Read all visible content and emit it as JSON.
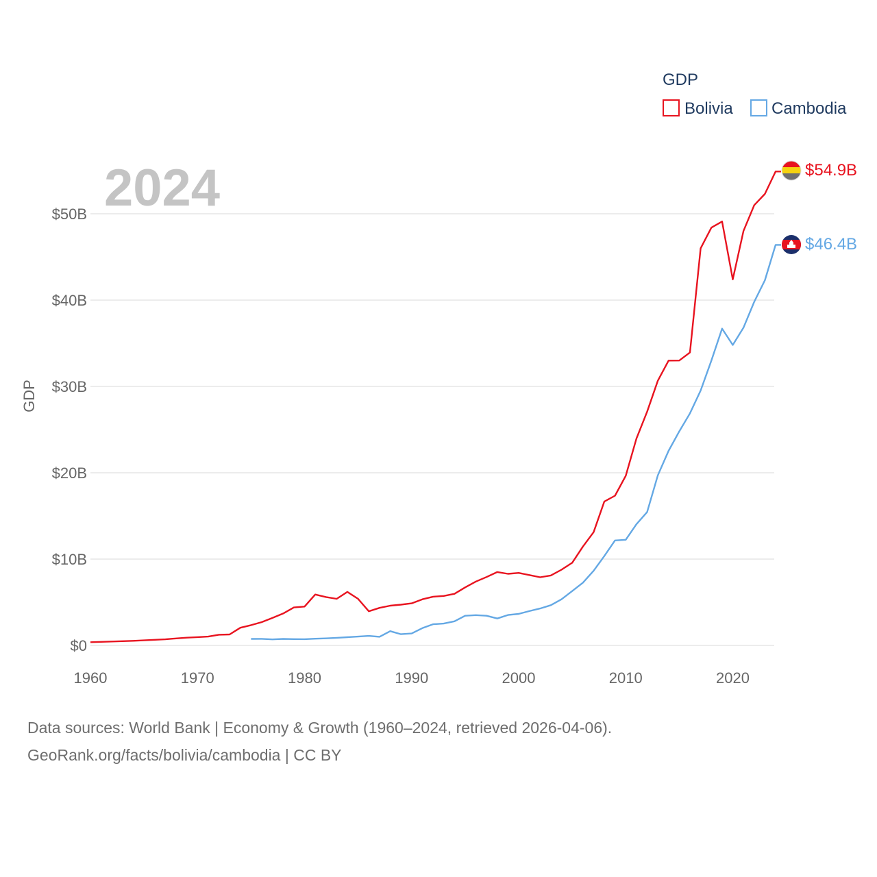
{
  "chart_data": {
    "type": "line",
    "title": "GDP",
    "ylabel": "GDP",
    "xlabel": "",
    "year_label": "2024",
    "xlim": [
      1960,
      2024
    ],
    "ylim": [
      0,
      55000000000
    ],
    "x_ticks": [
      1960,
      1970,
      1980,
      1990,
      2000,
      2010,
      2020
    ],
    "x_tick_labels": [
      "1960",
      "1970",
      "1980",
      "1990",
      "2000",
      "2010",
      "2020"
    ],
    "y_ticks": [
      0,
      10000000000,
      20000000000,
      30000000000,
      40000000000,
      50000000000
    ],
    "y_tick_labels": [
      "$0",
      "$10B",
      "$20B",
      "$30B",
      "$40B",
      "$50B"
    ],
    "grid": true,
    "legend": {
      "title": "GDP",
      "placement": "top-right",
      "entries": [
        {
          "name": "Bolivia",
          "color": "#e8131f"
        },
        {
          "name": "Cambodia",
          "color": "#64a8e4"
        }
      ]
    },
    "series": [
      {
        "name": "Bolivia",
        "color": "#e8131f",
        "end_label": "$54.9B",
        "flag_icon": "bolivia-flag-icon",
        "x": [
          1960,
          1961,
          1962,
          1963,
          1964,
          1965,
          1966,
          1967,
          1968,
          1969,
          1970,
          1971,
          1972,
          1973,
          1974,
          1975,
          1976,
          1977,
          1978,
          1979,
          1980,
          1981,
          1982,
          1983,
          1984,
          1985,
          1986,
          1987,
          1988,
          1989,
          1990,
          1991,
          1992,
          1993,
          1994,
          1995,
          1996,
          1997,
          1998,
          1999,
          2000,
          2001,
          2002,
          2003,
          2004,
          2005,
          2006,
          2007,
          2008,
          2009,
          2010,
          2011,
          2012,
          2013,
          2014,
          2015,
          2016,
          2017,
          2018,
          2019,
          2020,
          2021,
          2022,
          2023,
          2024
        ],
        "values": [
          370000000.0,
          410000000.0,
          450000000.0,
          490000000.0,
          530000000.0,
          590000000.0,
          650000000.0,
          710000000.0,
          810000000.0,
          900000000.0,
          960000000.0,
          1020000000.0,
          1240000000.0,
          1270000000.0,
          2050000000.0,
          2350000000.0,
          2700000000.0,
          3180000000.0,
          3700000000.0,
          4400000000.0,
          4500000000.0,
          5900000000.0,
          5600000000.0,
          5400000000.0,
          6200000000.0,
          5400000000.0,
          3950000000.0,
          4350000000.0,
          4600000000.0,
          4720000000.0,
          4870000000.0,
          5340000000.0,
          5640000000.0,
          5730000000.0,
          5980000000.0,
          6720000000.0,
          7400000000.0,
          7920000000.0,
          8500000000.0,
          8290000000.0,
          8400000000.0,
          8150000000.0,
          7900000000.0,
          8100000000.0,
          8770000000.0,
          9570000000.0,
          11450000000.0,
          13120000000.0,
          16670000000.0,
          17340000000.0,
          19650000000.0,
          23960000000.0,
          27080000000.0,
          30660000000.0,
          32990000000.0,
          33000000000.0,
          33940000000.0,
          46000000000.0,
          48400000000.0,
          49100000000.0,
          42400000000.0,
          48000000000.0,
          51000000000.0,
          52300000000.0,
          54900000000.0
        ]
      },
      {
        "name": "Cambodia",
        "color": "#64a8e4",
        "end_label": "$46.4B",
        "flag_icon": "cambodia-flag-icon",
        "x": [
          1975,
          1976,
          1977,
          1978,
          1979,
          1980,
          1981,
          1982,
          1983,
          1984,
          1985,
          1986,
          1987,
          1988,
          1989,
          1990,
          1991,
          1992,
          1993,
          1994,
          1995,
          1996,
          1997,
          1998,
          1999,
          2000,
          2001,
          2002,
          2003,
          2004,
          2005,
          2006,
          2007,
          2008,
          2009,
          2010,
          2011,
          2012,
          2013,
          2014,
          2015,
          2016,
          2017,
          2018,
          2019,
          2020,
          2021,
          2022,
          2023,
          2024
        ],
        "values": [
          750000000.0,
          760000000.0,
          700000000.0,
          750000000.0,
          730000000.0,
          720000000.0,
          780000000.0,
          820000000.0,
          880000000.0,
          950000000.0,
          1020000000.0,
          1100000000.0,
          1000000000.0,
          1650000000.0,
          1300000000.0,
          1380000000.0,
          2000000000.0,
          2450000000.0,
          2530000000.0,
          2790000000.0,
          3440000000.0,
          3510000000.0,
          3440000000.0,
          3120000000.0,
          3520000000.0,
          3650000000.0,
          3980000000.0,
          4280000000.0,
          4660000000.0,
          5340000000.0,
          6290000000.0,
          7270000000.0,
          8640000000.0,
          10350000000.0,
          12160000000.0,
          12240000000.0,
          14040000000.0,
          15450000000.0,
          19700000000.0,
          22540000000.0,
          24790000000.0,
          26880000000.0,
          29520000000.0,
          33000000000.0,
          36700000000.0,
          34800000000.0,
          36800000000.0,
          39800000000.0,
          42300000000.0,
          46400000000.0
        ]
      }
    ]
  },
  "footer": {
    "source_line": "Data sources: World Bank | Economy & Growth (1960–2024, retrieved 2026-04-06).",
    "url_line": "GeoRank.org/facts/bolivia/cambodia | CC BY"
  }
}
